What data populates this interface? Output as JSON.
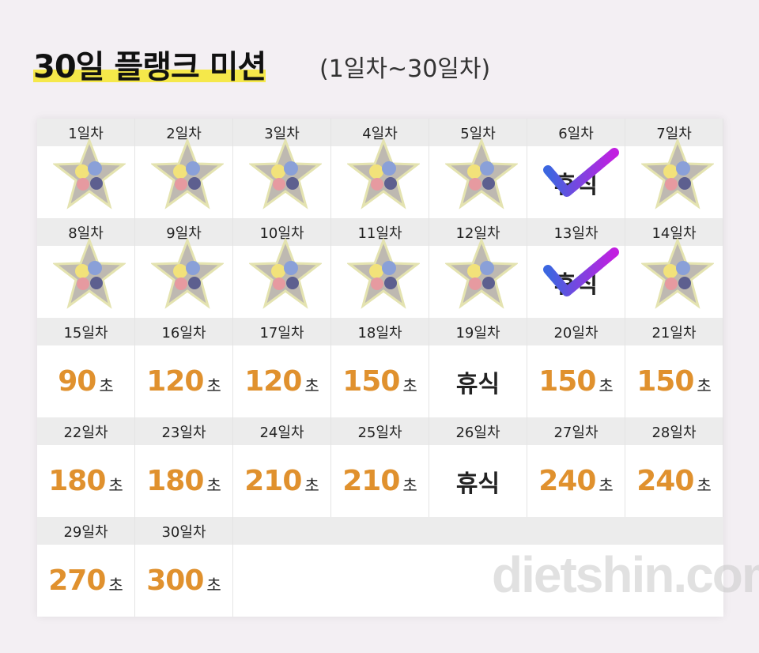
{
  "header": {
    "title": "30일 플랭크 미션",
    "subtitle": "(1일차~30일차)"
  },
  "days": [
    {
      "day": "1일차"
    },
    {
      "day": "2일차"
    },
    {
      "day": "3일차"
    },
    {
      "day": "4일차"
    },
    {
      "day": "5일차"
    },
    {
      "day": "6일차",
      "rest": "휴식"
    },
    {
      "day": "7일차"
    },
    {
      "day": "8일차"
    },
    {
      "day": "9일차"
    },
    {
      "day": "10일차"
    },
    {
      "day": "11일차"
    },
    {
      "day": "12일차"
    },
    {
      "day": "13일차",
      "rest": "휴식"
    },
    {
      "day": "14일차"
    },
    {
      "day": "15일차",
      "value": 90,
      "unit": "초"
    },
    {
      "day": "16일차",
      "value": 120,
      "unit": "초"
    },
    {
      "day": "17일차",
      "value": 120,
      "unit": "초"
    },
    {
      "day": "18일차",
      "value": 150,
      "unit": "초"
    },
    {
      "day": "19일차",
      "rest": "휴식"
    },
    {
      "day": "20일차",
      "value": 150,
      "unit": "초"
    },
    {
      "day": "21일차",
      "value": 150,
      "unit": "초"
    },
    {
      "day": "22일차",
      "value": 180,
      "unit": "초"
    },
    {
      "day": "23일차",
      "value": 180,
      "unit": "초"
    },
    {
      "day": "24일차",
      "value": 210,
      "unit": "초"
    },
    {
      "day": "25일차",
      "value": 210,
      "unit": "초"
    },
    {
      "day": "26일차",
      "rest": "휴식"
    },
    {
      "day": "27일차",
      "value": 240,
      "unit": "초"
    },
    {
      "day": "28일차",
      "value": 240,
      "unit": "초"
    },
    {
      "day": "29일차",
      "value": 270,
      "unit": "초"
    },
    {
      "day": "30일차",
      "value": 300,
      "unit": "초"
    }
  ],
  "watermark": "dietshin.com"
}
